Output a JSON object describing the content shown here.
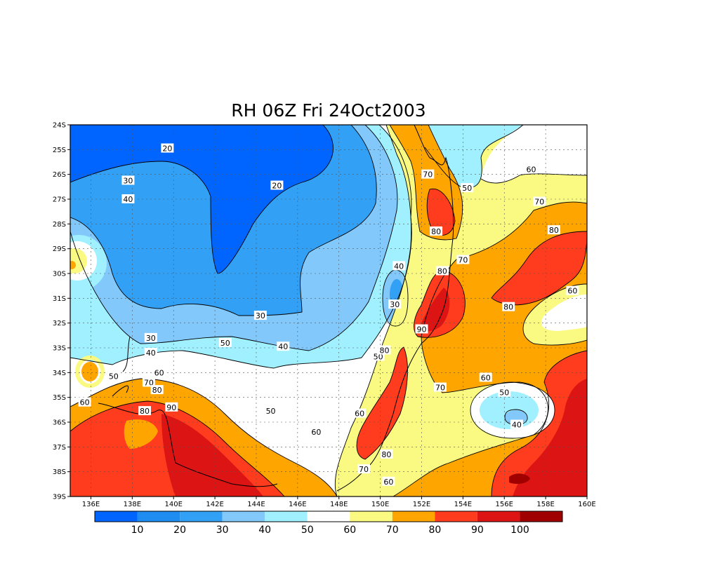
{
  "chart_data": {
    "type": "heatmap",
    "title": "RH 06Z Fri 24Oct2003",
    "variable": "relative humidity",
    "x_ticks": [
      "136E",
      "138E",
      "140E",
      "142E",
      "144E",
      "146E",
      "148E",
      "150E",
      "152E",
      "154E",
      "156E",
      "158E",
      "160E"
    ],
    "y_ticks": [
      "24S",
      "25S",
      "26S",
      "27S",
      "28S",
      "29S",
      "30S",
      "31S",
      "32S",
      "33S",
      "34S",
      "35S",
      "36S",
      "37S",
      "38S",
      "39S"
    ],
    "xlim": [
      135,
      160
    ],
    "ylim": [
      -39,
      -24
    ],
    "grid": true,
    "colorbar": {
      "labels": [
        "10",
        "20",
        "30",
        "40",
        "50",
        "60",
        "70",
        "80",
        "90",
        "100"
      ],
      "colors": [
        "#0064ff",
        "#1e8cf0",
        "#32a0f5",
        "#82c8fa",
        "#a0f0ff",
        "#ffffff",
        "#fafa82",
        "#ffa500",
        "#ff3c1e",
        "#dc1414",
        "#a00000"
      ]
    },
    "contour_labels": [
      {
        "text": "20",
        "lon": 139.7,
        "lat": -24.95
      },
      {
        "text": "20",
        "lon": 145.0,
        "lat": -26.45
      },
      {
        "text": "30",
        "lon": 137.8,
        "lat": -26.25
      },
      {
        "text": "40",
        "lon": 137.8,
        "lat": -27.0
      },
      {
        "text": "30",
        "lon": 144.2,
        "lat": -31.7
      },
      {
        "text": "30",
        "lon": 138.9,
        "lat": -32.6
      },
      {
        "text": "40",
        "lon": 138.9,
        "lat": -33.2
      },
      {
        "text": "40",
        "lon": 145.3,
        "lat": -32.95
      },
      {
        "text": "50",
        "lon": 142.5,
        "lat": -32.8
      },
      {
        "text": "40",
        "lon": 150.9,
        "lat": -29.7
      },
      {
        "text": "30",
        "lon": 150.7,
        "lat": -31.25
      },
      {
        "text": "50",
        "lon": 149.9,
        "lat": -33.35
      },
      {
        "text": "60",
        "lon": 139.3,
        "lat": -34.0
      },
      {
        "text": "50",
        "lon": 137.1,
        "lat": -34.15
      },
      {
        "text": "70",
        "lon": 138.8,
        "lat": -34.4
      },
      {
        "text": "80",
        "lon": 139.2,
        "lat": -34.7
      },
      {
        "text": "60",
        "lon": 135.7,
        "lat": -35.2
      },
      {
        "text": "80",
        "lon": 138.6,
        "lat": -35.55
      },
      {
        "text": "90",
        "lon": 139.9,
        "lat": -35.4
      },
      {
        "text": "50",
        "lon": 144.7,
        "lat": -35.55
      },
      {
        "text": "60",
        "lon": 146.9,
        "lat": -36.4
      },
      {
        "text": "60",
        "lon": 149.0,
        "lat": -35.65
      },
      {
        "text": "80",
        "lon": 150.2,
        "lat": -33.1
      },
      {
        "text": "70",
        "lon": 152.3,
        "lat": -26.0
      },
      {
        "text": "80",
        "lon": 152.7,
        "lat": -28.3
      },
      {
        "text": "50",
        "lon": 154.2,
        "lat": -26.55
      },
      {
        "text": "60",
        "lon": 157.3,
        "lat": -25.8
      },
      {
        "text": "70",
        "lon": 157.7,
        "lat": -27.1
      },
      {
        "text": "80",
        "lon": 158.4,
        "lat": -28.25
      },
      {
        "text": "70",
        "lon": 154.0,
        "lat": -29.45
      },
      {
        "text": "80",
        "lon": 153.0,
        "lat": -29.9
      },
      {
        "text": "60",
        "lon": 159.3,
        "lat": -30.7
      },
      {
        "text": "80",
        "lon": 156.2,
        "lat": -31.35
      },
      {
        "text": "90",
        "lon": 152.0,
        "lat": -32.25
      },
      {
        "text": "70",
        "lon": 152.9,
        "lat": -34.6
      },
      {
        "text": "60",
        "lon": 155.1,
        "lat": -34.2
      },
      {
        "text": "50",
        "lon": 156.0,
        "lat": -34.8
      },
      {
        "text": "40",
        "lon": 156.6,
        "lat": -36.1
      },
      {
        "text": "80",
        "lon": 150.3,
        "lat": -37.3
      },
      {
        "text": "70",
        "lon": 149.2,
        "lat": -37.9
      },
      {
        "text": "60",
        "lon": 150.4,
        "lat": -38.4
      }
    ]
  }
}
